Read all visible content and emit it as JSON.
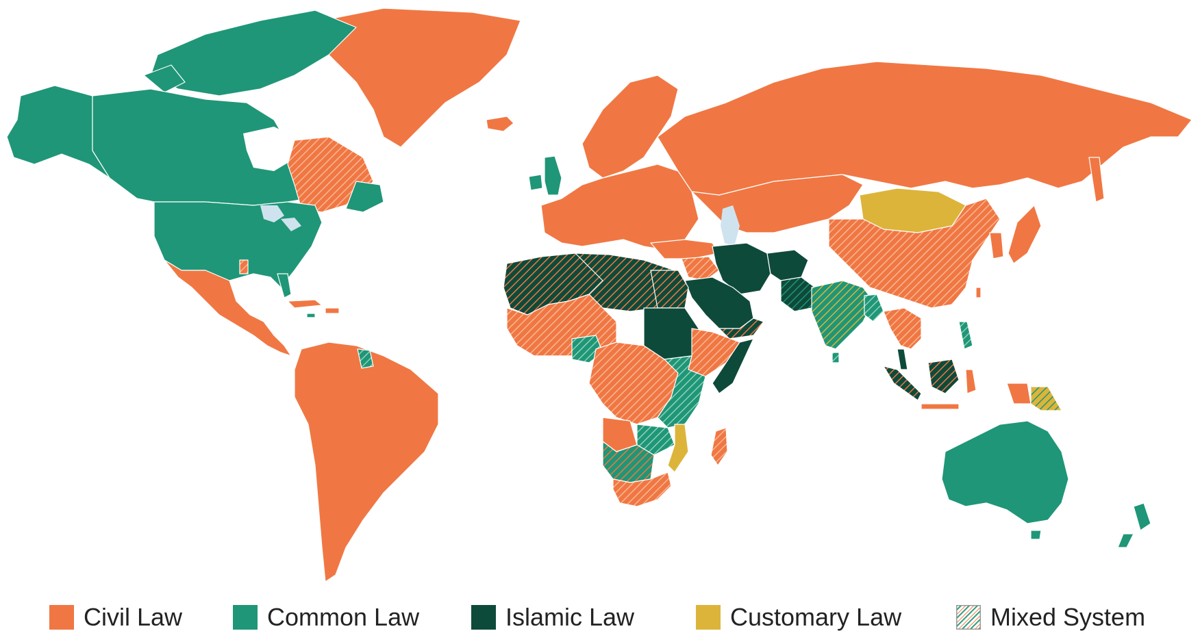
{
  "colors": {
    "civil": "#F07743",
    "common": "#1F9677",
    "islamic": "#0E4A3A",
    "customary": "#DDB43A",
    "water": "#CFE3EF",
    "border": "#ffffff"
  },
  "legend": [
    {
      "key": "civil",
      "label": "Civil Law",
      "swatch": "solid"
    },
    {
      "key": "common",
      "label": "Common Law",
      "swatch": "solid"
    },
    {
      "key": "islamic",
      "label": "Islamic Law",
      "swatch": "solid"
    },
    {
      "key": "customary",
      "label": "Customary Law",
      "swatch": "solid"
    },
    {
      "key": "mixed",
      "label": "Mixed System",
      "swatch": "hatch"
    }
  ]
}
